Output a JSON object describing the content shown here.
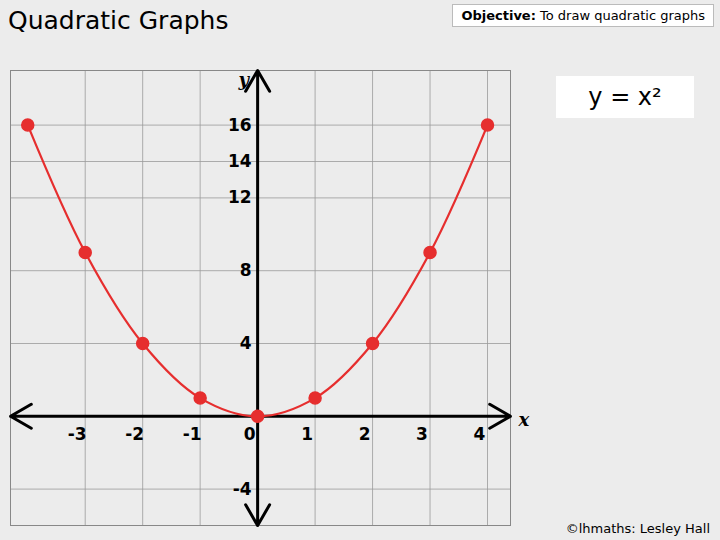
{
  "chart_data": {
    "type": "line",
    "title": "Quadratic Graphs",
    "subtitle_label": "Objective:",
    "subtitle": "To draw quadratic graphs",
    "annotations": [
      "y = x²"
    ],
    "caption": "©lhmaths: Lesley Hall",
    "x_label": "x",
    "y_label": "y",
    "x": [
      -4,
      -3,
      -2,
      -1,
      0,
      1,
      2,
      3,
      4
    ],
    "values": [
      16,
      9,
      4,
      1,
      0,
      1,
      4,
      9,
      16
    ],
    "color": "#e62e2e",
    "marker": "circle",
    "line_style": "solid",
    "xlim": [
      -4.3,
      4.4
    ],
    "ylim": [
      -6,
      19
    ],
    "xticks": [
      -3,
      -2,
      -1,
      0,
      1,
      2,
      3,
      4
    ],
    "yticks": [
      -4,
      4,
      8,
      12,
      14,
      16
    ],
    "grid": true
  }
}
